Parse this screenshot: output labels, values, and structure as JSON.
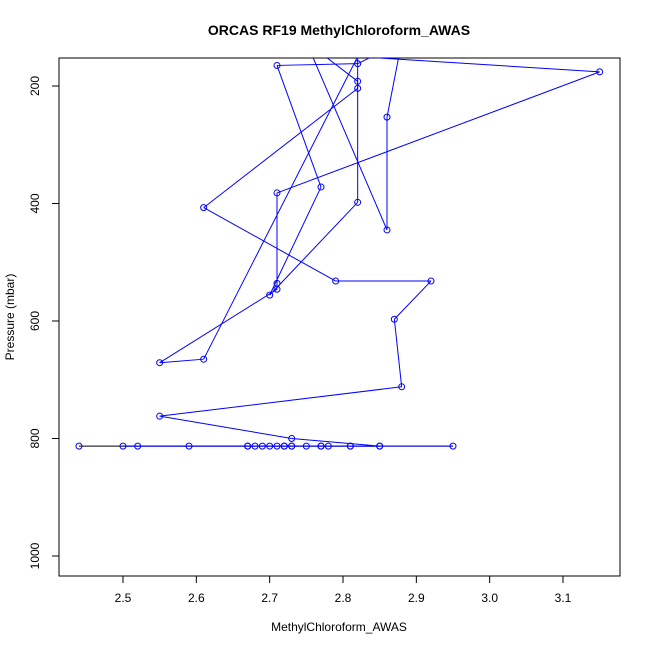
{
  "chart_data": {
    "type": "line",
    "title": "ORCAS RF19 MethylChloroform_AWAS",
    "xlabel": "MethylChloroform_AWAS",
    "ylabel": "Pressure (mbar)",
    "xlim": [
      2.42,
      3.17
    ],
    "ylim": [
      1037,
      153
    ],
    "y_inverted": true,
    "x_ticks": [
      2.5,
      2.6,
      2.7,
      2.8,
      2.9,
      3.0,
      3.1
    ],
    "x_tick_labels": [
      "2.5",
      "2.6",
      "2.7",
      "2.8",
      "2.9",
      "3.0",
      "3.1"
    ],
    "y_ticks": [
      200,
      400,
      600,
      800,
      1000
    ],
    "y_tick_labels": [
      "200",
      "400",
      "600",
      "800",
      "1000"
    ],
    "grid": false,
    "legend": "none",
    "colors": {
      "series": "#0000ff",
      "flat_segment": "#000000",
      "axes": "#000000"
    },
    "series": [
      {
        "x": [
          2.44,
          2.95,
          2.85,
          2.81,
          2.77,
          2.73,
          2.72,
          2.71,
          2.7,
          2.69,
          2.68,
          2.67,
          2.59,
          2.52,
          2.5,
          2.67,
          2.72,
          2.73,
          2.75,
          2.77,
          2.78,
          2.81,
          2.85,
          2.73,
          2.55,
          2.88,
          2.87,
          2.92,
          2.79,
          2.61,
          2.82,
          2.82,
          2.75,
          2.86,
          2.86,
          2.88,
          2.82,
          2.71,
          2.77,
          2.7,
          2.82,
          2.82,
          3.15,
          2.71,
          2.71,
          2.71,
          2.55,
          2.61,
          2.82,
          2.82,
          2.86
        ],
        "y": [
          813,
          813,
          813,
          813,
          813,
          813,
          813,
          813,
          813,
          813,
          813,
          813,
          813,
          813,
          813,
          813,
          813,
          813,
          813,
          813,
          813,
          813,
          813,
          800,
          762,
          712,
          597,
          532,
          532,
          407,
          204,
          192,
          125,
          445,
          253,
          125,
          162,
          165,
          372,
          556,
          398,
          150,
          176,
          382,
          536,
          546,
          671,
          665,
          150,
          150,
          125
        ]
      }
    ]
  }
}
